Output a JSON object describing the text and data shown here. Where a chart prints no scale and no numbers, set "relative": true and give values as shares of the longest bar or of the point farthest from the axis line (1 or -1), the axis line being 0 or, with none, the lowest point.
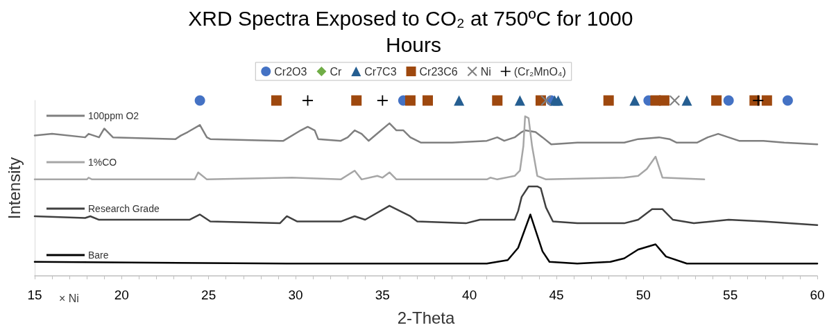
{
  "chart_data": {
    "type": "line",
    "title": "XRD Spectra Exposed to CO₂ at 750ºC for 1000 Hours",
    "xlabel": "2-Theta",
    "ylabel": "Intensity",
    "relative": true,
    "xlim": [
      15,
      60
    ],
    "xticks": [
      15,
      20,
      25,
      30,
      35,
      40,
      45,
      50,
      55,
      60
    ],
    "grid": false,
    "legend": "top",
    "annotations": [
      "× Ni"
    ],
    "series": [
      {
        "name": "Cr2O3",
        "type": "scatter",
        "marker": "circle",
        "color": "#4472c4",
        "x": [
          24.5,
          36.2,
          44.7,
          50.3,
          54.9,
          58.3
        ],
        "values": [
          1,
          1,
          1,
          1,
          1,
          1
        ]
      },
      {
        "name": "Cr",
        "type": "scatter",
        "marker": "diamond",
        "color": "#70ad47"
      },
      {
        "name": "Cr7C3",
        "type": "scatter",
        "marker": "triangle",
        "color": "#255e91",
        "x": [
          39.4,
          42.9,
          44.9,
          45.1,
          49.5,
          52.5
        ],
        "values": [
          1,
          1,
          1,
          1,
          1,
          1
        ]
      },
      {
        "name": "Cr23C6",
        "type": "scatter",
        "marker": "square",
        "color": "#9e480e",
        "x": [
          28.9,
          33.5,
          36.6,
          37.6,
          41.6,
          44.1,
          48.0,
          50.7,
          51.2,
          54.2,
          56.4,
          57.1
        ],
        "values": [
          1,
          1,
          1,
          1,
          1,
          1,
          1,
          1,
          1,
          1,
          1,
          1
        ]
      },
      {
        "name": "Ni",
        "type": "scatter",
        "marker": "cross",
        "color": "#7f7f7f",
        "x": [
          44.4,
          51.8
        ],
        "values": [
          1,
          1
        ]
      },
      {
        "name": "(Cr₂MnO₄)",
        "type": "scatter",
        "marker": "plus",
        "color": "#000000",
        "x": [
          30.7,
          35.0,
          56.6
        ],
        "values": [
          1,
          1,
          1
        ]
      },
      {
        "name": "100ppm O2",
        "marker": "none",
        "color": "#7f7f7f",
        "x": [
          15,
          16,
          17.9,
          18.1,
          18.7,
          19.0,
          19.5,
          23.1,
          23.4,
          23.8,
          24.5,
          24.9,
          25.1,
          29.1,
          29.3,
          30.3,
          30.7,
          31.1,
          31.3,
          32.6,
          33.0,
          33.4,
          33.8,
          34.2,
          34.8,
          35.4,
          35.8,
          36.2,
          36.6,
          37.2,
          39.0,
          41.0,
          41.6,
          42.0,
          42.6,
          43.0,
          43.2,
          43.8,
          44.2,
          44.7,
          46.2,
          48.9,
          49.7,
          50.9,
          51.5,
          51.9,
          53.1,
          53.7,
          54.3,
          54.9,
          55.5,
          56.9,
          58.1,
          60
        ],
        "values": [
          0.8,
          0.81,
          0.79,
          0.81,
          0.79,
          0.84,
          0.79,
          0.78,
          0.8,
          0.82,
          0.86,
          0.79,
          0.78,
          0.77,
          0.77,
          0.83,
          0.85,
          0.83,
          0.78,
          0.77,
          0.79,
          0.83,
          0.81,
          0.77,
          0.82,
          0.87,
          0.83,
          0.83,
          0.79,
          0.76,
          0.76,
          0.77,
          0.79,
          0.77,
          0.79,
          0.82,
          0.83,
          0.82,
          0.79,
          0.75,
          0.76,
          0.76,
          0.78,
          0.79,
          0.78,
          0.76,
          0.76,
          0.79,
          0.81,
          0.79,
          0.77,
          0.77,
          0.76,
          0.75
        ]
      },
      {
        "name": "1%CO",
        "marker": "none",
        "color": "#a6a6a6",
        "x": [
          15,
          18.0,
          18.1,
          18.3,
          24.2,
          24.4,
          24.9,
          29.8,
          32.6,
          33.4,
          33.8,
          34.7,
          35.0,
          35.4,
          35.8,
          41.0,
          41.2,
          41.6,
          42.6,
          42.9,
          43.1,
          43.2,
          43.4,
          43.6,
          43.9,
          44.4,
          48.9,
          49.7,
          50.2,
          50.7,
          51.1,
          53.5
        ],
        "values": [
          0.55,
          0.55,
          0.56,
          0.55,
          0.55,
          0.59,
          0.55,
          0.56,
          0.55,
          0.6,
          0.55,
          0.57,
          0.56,
          0.59,
          0.55,
          0.55,
          0.56,
          0.55,
          0.57,
          0.6,
          0.74,
          0.91,
          0.9,
          0.74,
          0.57,
          0.55,
          0.56,
          0.57,
          0.61,
          0.68,
          0.56,
          0.55
        ]
      },
      {
        "name": "Research Grade",
        "marker": "none",
        "color": "#404040",
        "x": [
          15,
          17.9,
          18.2,
          18.7,
          23.1,
          23.9,
          24.5,
          25.1,
          29.1,
          29.5,
          30.1,
          32.6,
          33.4,
          34.0,
          35.4,
          36.2,
          36.6,
          37.0,
          39.8,
          40.6,
          42.6,
          42.8,
          43.0,
          43.4,
          43.9,
          44.1,
          44.4,
          44.8,
          46.2,
          48.9,
          49.7,
          50.5,
          51.1,
          51.7,
          52.9,
          54.9,
          56.9,
          60
        ],
        "values": [
          0.34,
          0.33,
          0.34,
          0.32,
          0.32,
          0.32,
          0.35,
          0.31,
          0.3,
          0.34,
          0.31,
          0.31,
          0.34,
          0.32,
          0.4,
          0.36,
          0.34,
          0.31,
          0.3,
          0.32,
          0.32,
          0.37,
          0.45,
          0.51,
          0.51,
          0.5,
          0.39,
          0.31,
          0.3,
          0.3,
          0.32,
          0.38,
          0.38,
          0.32,
          0.3,
          0.32,
          0.31,
          0.29
        ]
      },
      {
        "name": "Bare",
        "marker": "none",
        "color": "#000000",
        "x": [
          15,
          29.5,
          41.0,
          42.2,
          42.8,
          43.5,
          44.2,
          44.6,
          46.2,
          48.1,
          48.9,
          49.7,
          50.7,
          51.3,
          52.5,
          60
        ],
        "values": [
          0.08,
          0.07,
          0.07,
          0.09,
          0.16,
          0.35,
          0.14,
          0.08,
          0.07,
          0.08,
          0.1,
          0.15,
          0.18,
          0.11,
          0.07,
          0.07
        ]
      }
    ]
  }
}
